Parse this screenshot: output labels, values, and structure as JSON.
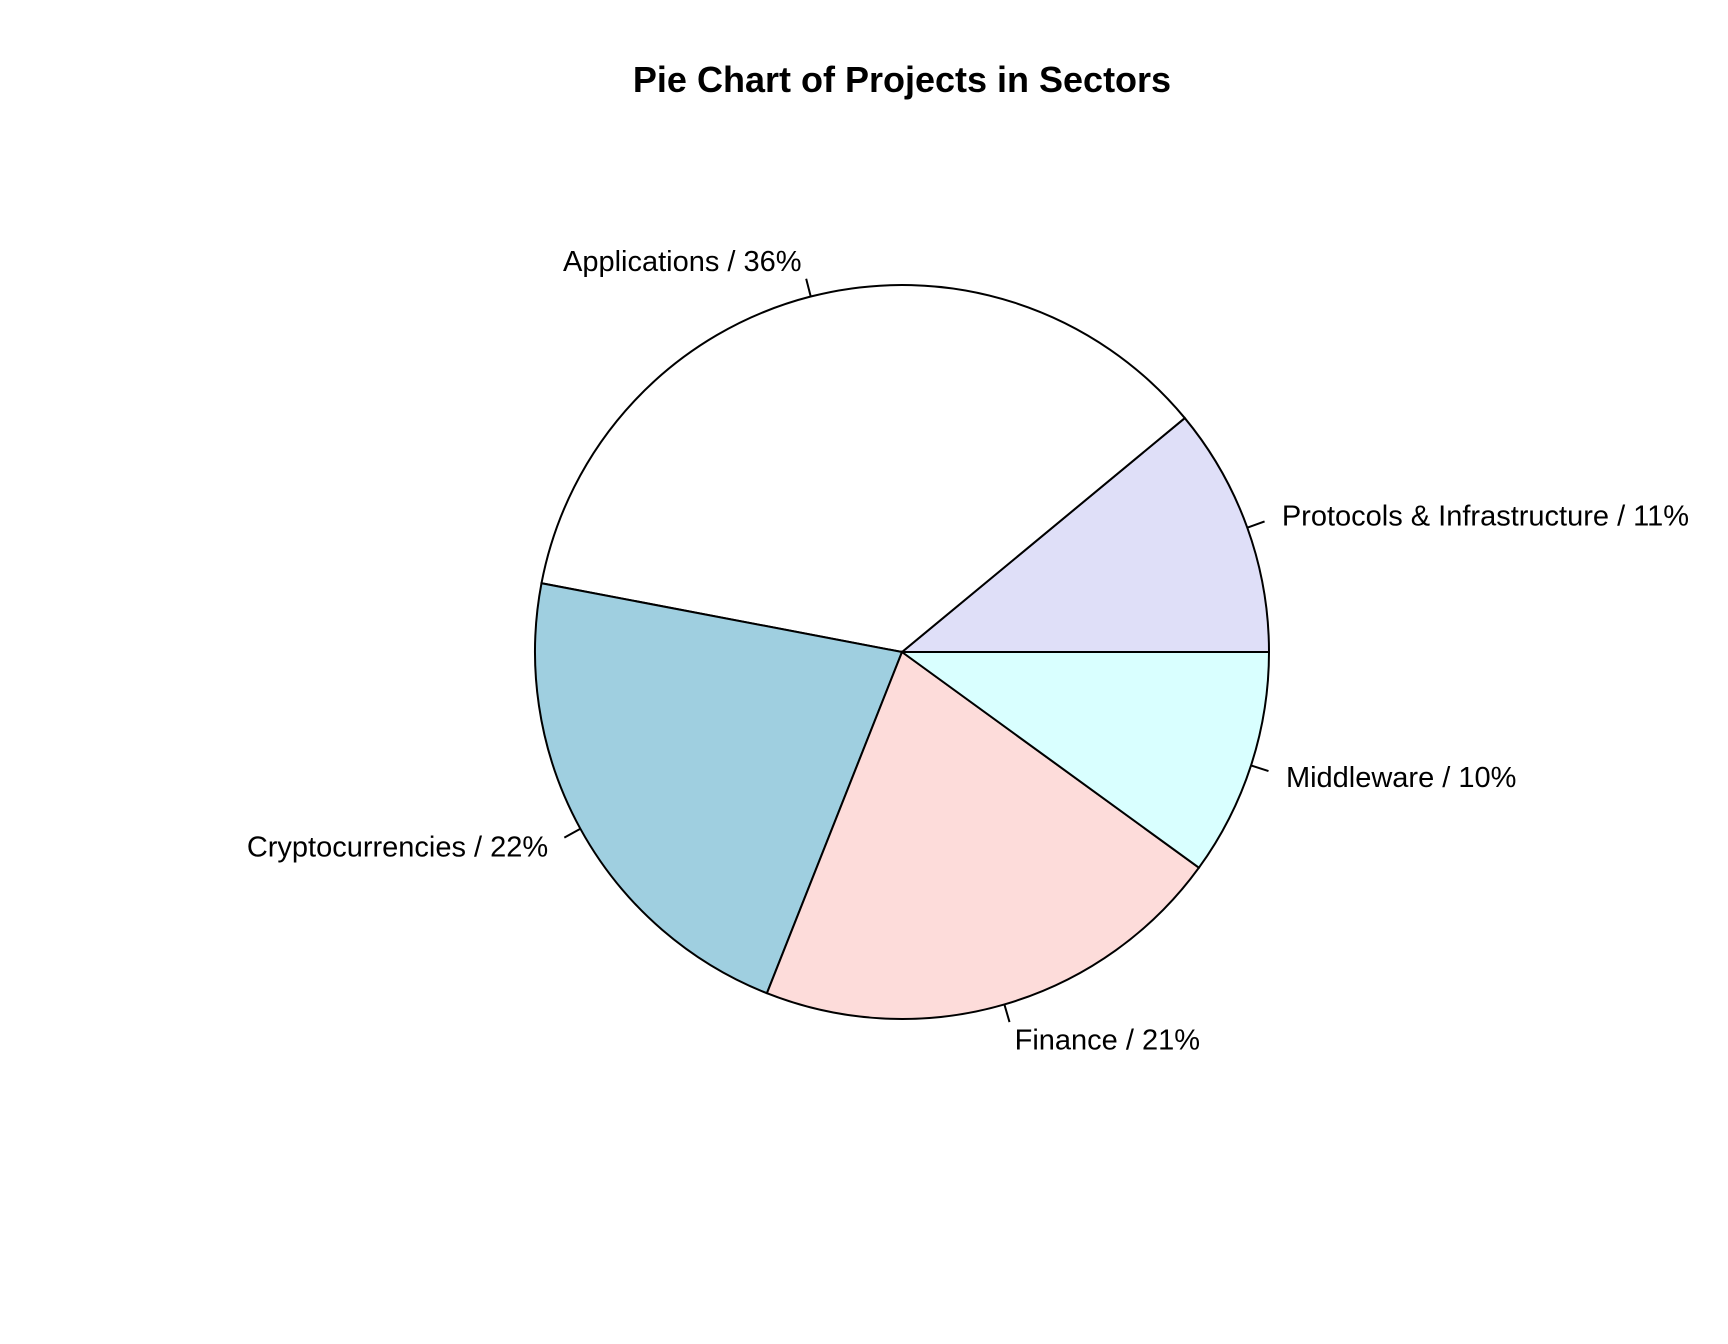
{
  "chart_data": {
    "type": "pie",
    "title": "Pie Chart of Projects in Sectors",
    "direction": "counterclockwise",
    "start": "3 o'clock",
    "slices": [
      {
        "label": "Protocols & Infrastructure / 11%",
        "value": 11,
        "color": "#DFDFF8"
      },
      {
        "label": "Applications / 36%",
        "value": 36,
        "color": "#FFFFFF"
      },
      {
        "label": "Cryptocurrencies / 22%",
        "value": 22,
        "color": "#9FCFE0"
      },
      {
        "label": "Finance / 21%",
        "value": 21,
        "color": "#FDDCDA"
      },
      {
        "label": "Middleware / 10%",
        "value": 10,
        "color": "#D9FFFF"
      }
    ]
  }
}
